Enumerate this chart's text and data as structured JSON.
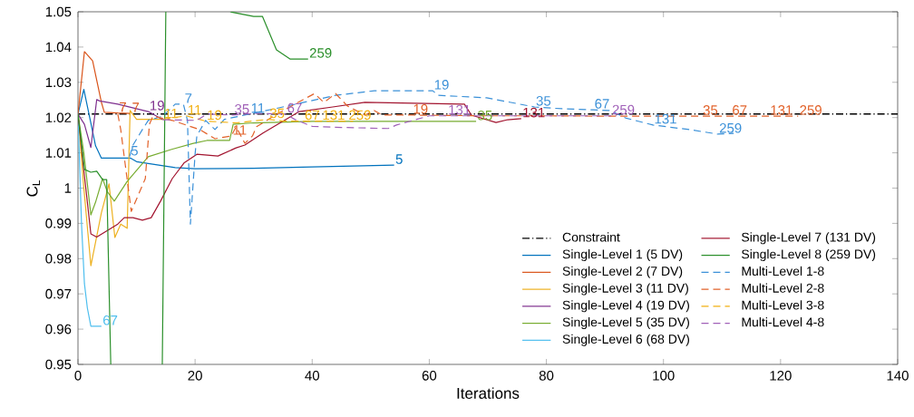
{
  "chart_data": {
    "type": "line",
    "xlabel": "Iterations",
    "ylabel": "C$_{L}$",
    "xlim": [
      0,
      140
    ],
    "ylim": [
      0.95,
      1.05
    ],
    "xticks": [
      0,
      20,
      40,
      60,
      80,
      100,
      120,
      140
    ],
    "yticks": [
      0.95,
      0.96,
      0.97,
      0.98,
      0.99,
      1,
      1.01,
      1.02,
      1.03,
      1.04,
      1.05
    ],
    "legend": "bottom right",
    "marker": "none",
    "ref_lines": [
      {
        "axis": "y",
        "value": 1.021,
        "label": "Constraint",
        "color": "#000000",
        "line_style": "dashdot"
      }
    ],
    "series": [
      {
        "name": "Single-Level 1 (5 DV)",
        "color": "#0072BD",
        "line_style": "solid",
        "x": [
          0,
          1,
          2,
          3,
          4,
          9,
          10,
          11.5,
          16.6,
          20,
          30,
          40,
          54
        ],
        "values": [
          1.021,
          1.028,
          1.02,
          1.012,
          1.0085,
          1.0085,
          1.0075,
          1.0071,
          1.0058,
          1.0055,
          1.0056,
          1.006,
          1.0065
        ]
      },
      {
        "name": "Single-Level 2 (7 DV)",
        "color": "#D95319",
        "line_style": "solid",
        "x": [
          0,
          1.1,
          2.5,
          4,
          4.5,
          6.8,
          9
        ],
        "values": [
          1.021,
          1.0387,
          1.0361,
          1.0243,
          1.0215,
          1.0213,
          1.0212
        ]
      },
      {
        "name": "Single-Level 3 (11 DV)",
        "color": "#EDB120",
        "line_style": "solid",
        "x": [
          0,
          1,
          2.2,
          4,
          5.3,
          6.3,
          7.3,
          8.4,
          8.9,
          10,
          14.5
        ],
        "values": [
          1.021,
          1.0,
          0.978,
          0.993,
          1.0012,
          0.986,
          0.9898,
          0.9886,
          1.022,
          1.0195,
          1.0195
        ]
      },
      {
        "name": "Single-Level 4 (19 DV)",
        "color": "#7E2F8E",
        "line_style": "solid",
        "x": [
          0,
          1.1,
          2.2,
          3.2,
          3.7,
          6.8,
          12,
          14.5
        ],
        "values": [
          1.021,
          1.0181,
          1.0115,
          1.0251,
          1.0247,
          1.0238,
          1.0217,
          1.0194
        ]
      },
      {
        "name": "Single-Level 5 (35 DV)",
        "color": "#77AC30",
        "line_style": "solid",
        "x": [
          0,
          1,
          2.2,
          3,
          4.2,
          5,
          6.2,
          8.4,
          12,
          16,
          19.7,
          22,
          25.9,
          26.5,
          30,
          40,
          50,
          60,
          68
        ],
        "values": [
          1.021,
          1.01,
          0.9924,
          0.996,
          1.0027,
          0.999,
          0.9963,
          1.0019,
          1.0089,
          1.011,
          1.0127,
          1.0135,
          1.0135,
          1.0181,
          1.0185,
          1.0189,
          1.0189,
          1.0189,
          1.0189
        ]
      },
      {
        "name": "Single-Level 6 (68 DV)",
        "color": "#4DBEEE",
        "line_style": "solid",
        "x": [
          0,
          0.6,
          1.1,
          1.6,
          2.2,
          4
        ],
        "values": [
          1.021,
          0.99,
          0.9729,
          0.966,
          0.9608,
          0.9608
        ]
      },
      {
        "name": "Single-Level 7 (131 DV)",
        "color": "#A2142F",
        "line_style": "solid",
        "x": [
          0,
          1,
          2.2,
          3.2,
          6.8,
          7.9,
          9.4,
          11,
          12.5,
          14.1,
          16.1,
          18.1,
          20.3,
          23.9,
          27,
          28.5,
          31.6,
          37.8,
          43.5,
          49,
          66,
          67.2,
          71.4,
          73.4,
          75.7
        ],
        "values": [
          1.021,
          1.005,
          0.987,
          0.9861,
          0.9898,
          0.9916,
          0.9916,
          0.9909,
          0.9916,
          0.9963,
          1.0027,
          1.0071,
          1.0096,
          1.0091,
          1.0114,
          1.0122,
          1.0156,
          1.0217,
          1.023,
          1.0243,
          1.0238,
          1.0207,
          1.0186,
          1.0194,
          1.0197
        ]
      },
      {
        "name": "Single-Level 8 (259 DV)",
        "color": "#2A8F2A",
        "line_style": "solid",
        "x": [
          0,
          1.1,
          2.2,
          3.2,
          4.2,
          4.9,
          5.6,
          10,
          14.4,
          15,
          20,
          26,
          30,
          31.5,
          33.9,
          36.2,
          39.3
        ],
        "values": [
          1.021,
          1.0053,
          1.0045,
          1.0048,
          1.0024,
          1.0024,
          0.95,
          null,
          0.95,
          1.05,
          null,
          1.05,
          1.0487,
          1.0487,
          1.0392,
          1.0366,
          1.0366
        ]
      },
      {
        "name": "Multi-Level 1-8",
        "color": "#3A90D8",
        "line_style": "dashed",
        "x": [
          8.8,
          9.4,
          11,
          12,
          14.5,
          16.6,
          18,
          18.7,
          19.2,
          20,
          20.3,
          21.8,
          23.4,
          25,
          29.3,
          33.6,
          44,
          50.6,
          60.6,
          61.5,
          69.8,
          78,
          82.7,
          88,
          90.9,
          93.5,
          98.2,
          104.4,
          109.3,
          112
        ],
        "values": [
          1.0089,
          1.0122,
          1.0166,
          1.0192,
          1.0204,
          1.0238,
          1.0238,
          1.0192,
          0.9898,
          1.0096,
          1.0148,
          1.0192,
          1.0166,
          1.0195,
          1.021,
          1.0225,
          1.0263,
          1.0276,
          1.0276,
          1.0263,
          1.0256,
          1.023,
          1.0225,
          1.0222,
          1.022,
          1.0199,
          1.0179,
          1.0166,
          1.0153,
          1.0155
        ]
      },
      {
        "name": "Multi-Level 2-8",
        "color": "#E2622A",
        "line_style": "dashed",
        "x": [
          6.8,
          7.3,
          9.1,
          11.5,
          12.2,
          12.8,
          16.1,
          20.8,
          23.4,
          26.2,
          27,
          28.5,
          29.8,
          30.5,
          34,
          37.8,
          40.4,
          42,
          44,
          46,
          49,
          50.6,
          52,
          57,
          70,
          80,
          90,
          100,
          106.5,
          111.5,
          118,
          123
        ],
        "values": [
          1.021,
          1.0166,
          0.9934,
          1.0027,
          1.0181,
          1.0204,
          1.0192,
          1.0166,
          1.014,
          1.0148,
          1.0174,
          1.0127,
          1.0148,
          1.0174,
          1.021,
          1.0245,
          1.0268,
          1.0243,
          1.0268,
          1.0233,
          1.0207,
          1.022,
          1.0207,
          1.0207,
          1.0205,
          1.0205,
          1.0204,
          1.0204,
          1.0204,
          1.0204,
          1.0204,
          1.0204
        ]
      },
      {
        "name": "Multi-Level 3-8",
        "color": "#F2B010",
        "line_style": "dashed",
        "x": [
          14.5,
          18.5,
          21.8,
          27,
          32.5,
          35,
          38.5,
          41.5,
          46,
          47
        ],
        "values": [
          1.0195,
          1.0205,
          1.019,
          1.0185,
          1.0195,
          1.019,
          1.019,
          1.019,
          1.019,
          1.019
        ]
      },
      {
        "name": "Multi-Level 4-8",
        "color": "#A060B8",
        "line_style": "dashed",
        "x": [
          14.5,
          20.3,
          22,
          26.5,
          30,
          35.5,
          37,
          40,
          45,
          53,
          54.4,
          60,
          63,
          70,
          80,
          91,
          92
        ],
        "values": [
          1.0194,
          1.0192,
          1.021,
          1.0207,
          1.0212,
          1.021,
          1.0195,
          1.0175,
          1.0172,
          1.0169,
          1.0179,
          1.0205,
          1.0205,
          1.0205,
          1.0205,
          1.0205,
          1.0205
        ]
      }
    ],
    "annotations": [
      {
        "text": "5",
        "x": 54,
        "y": 1.0065
      },
      {
        "text": "7",
        "x": 6.8,
        "y": 1.0213
      },
      {
        "text": "7",
        "x": 9,
        "y": 1.0212
      },
      {
        "text": "11",
        "x": 14.5,
        "y": 1.0195
      },
      {
        "text": "19",
        "x": 12,
        "y": 1.0217
      },
      {
        "text": "35",
        "x": 68,
        "y": 1.0189
      },
      {
        "text": "67",
        "x": 4,
        "y": 0.9608
      },
      {
        "text": "131",
        "x": 75.7,
        "y": 1.0197
      },
      {
        "text": "259",
        "x": 39.3,
        "y": 1.0366
      },
      {
        "text": "5",
        "x": 8.8,
        "y": 1.0089
      },
      {
        "text": "7",
        "x": 18,
        "y": 1.0238
      },
      {
        "text": "11",
        "x": 29.3,
        "y": 1.021
      },
      {
        "text": "19",
        "x": 60.6,
        "y": 1.0276
      },
      {
        "text": "35",
        "x": 78,
        "y": 1.023
      },
      {
        "text": "67",
        "x": 88,
        "y": 1.0222
      },
      {
        "text": "131",
        "x": 98.2,
        "y": 1.0179
      },
      {
        "text": "259",
        "x": 109.3,
        "y": 1.0153
      },
      {
        "text": "11",
        "x": 26.2,
        "y": 1.0148
      },
      {
        "text": "19",
        "x": 57,
        "y": 1.0207
      },
      {
        "text": "35",
        "x": 106.5,
        "y": 1.0204
      },
      {
        "text": "67",
        "x": 111.5,
        "y": 1.0204
      },
      {
        "text": "131",
        "x": 118,
        "y": 1.0204
      },
      {
        "text": "259",
        "x": 123,
        "y": 1.0204
      },
      {
        "text": "11",
        "x": 18.5,
        "y": 1.0205
      },
      {
        "text": "19",
        "x": 21.8,
        "y": 1.019
      },
      {
        "text": "35",
        "x": 32.5,
        "y": 1.0195
      },
      {
        "text": "67",
        "x": 38.5,
        "y": 1.019
      },
      {
        "text": "131",
        "x": 41.5,
        "y": 1.019
      },
      {
        "text": "259",
        "x": 46,
        "y": 1.019
      },
      {
        "text": "35",
        "x": 26.5,
        "y": 1.0207
      },
      {
        "text": "67",
        "x": 35.5,
        "y": 1.021
      },
      {
        "text": "131",
        "x": 63,
        "y": 1.0205
      },
      {
        "text": "259",
        "x": 91,
        "y": 1.0205
      }
    ]
  }
}
